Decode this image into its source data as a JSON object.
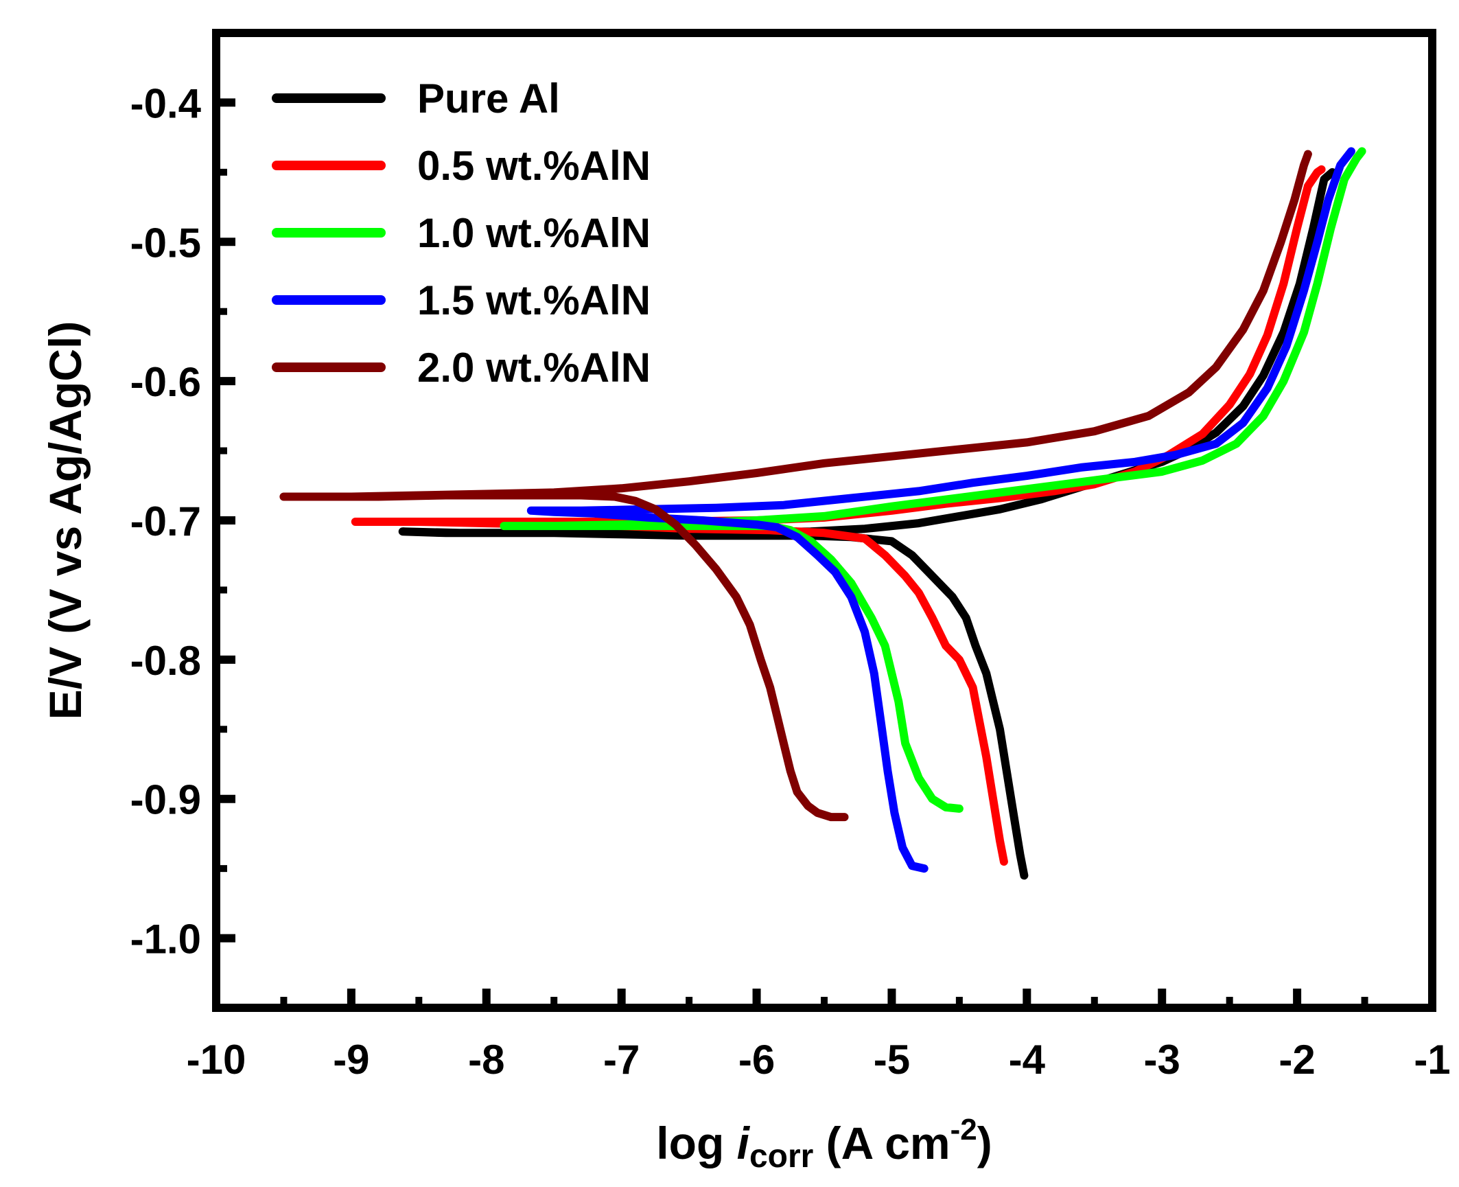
{
  "chart_data": {
    "type": "line",
    "title": "",
    "xlabel_prefix": "log ",
    "xlabel_italic": "i",
    "xlabel_sub": "corr",
    "xlabel_unit": " (A cm",
    "xlabel_sup": "-2",
    "xlabel_close": ")",
    "ylabel": "E/V (V vs Ag/AgCl)",
    "xlim": [
      -10,
      -1
    ],
    "ylim": [
      -1.05,
      -0.35
    ],
    "x_ticks": [
      -10,
      -9,
      -8,
      -7,
      -6,
      -5,
      -4,
      -3,
      -2,
      -1
    ],
    "x_tick_labels": [
      "-10",
      "-9",
      "-8",
      "-7",
      "-6",
      "-5",
      "-4",
      "-3",
      "-2",
      "-1"
    ],
    "y_ticks": [
      -0.4,
      -0.5,
      -0.6,
      -0.7,
      -0.8,
      -0.9,
      -1.0
    ],
    "y_tick_labels": [
      "-0.4",
      "-0.5",
      "-0.6",
      "-0.7",
      "-0.8",
      "-0.9",
      "-1.0"
    ],
    "grid": false,
    "legend_position": "top-left",
    "series": [
      {
        "name": "Pure Al",
        "color": "#000000",
        "points": [
          [
            -4.02,
            -0.955
          ],
          [
            -4.05,
            -0.94
          ],
          [
            -4.1,
            -0.91
          ],
          [
            -4.15,
            -0.88
          ],
          [
            -4.2,
            -0.85
          ],
          [
            -4.25,
            -0.83
          ],
          [
            -4.3,
            -0.81
          ],
          [
            -4.38,
            -0.79
          ],
          [
            -4.45,
            -0.77
          ],
          [
            -4.55,
            -0.755
          ],
          [
            -4.7,
            -0.74
          ],
          [
            -4.85,
            -0.725
          ],
          [
            -5.0,
            -0.715
          ],
          [
            -5.3,
            -0.712
          ],
          [
            -5.6,
            -0.711
          ],
          [
            -6.0,
            -0.711
          ],
          [
            -6.5,
            -0.711
          ],
          [
            -7.0,
            -0.71
          ],
          [
            -7.5,
            -0.709
          ],
          [
            -8.0,
            -0.709
          ],
          [
            -8.3,
            -0.709
          ],
          [
            -8.62,
            -0.708
          ],
          [
            -8.2,
            -0.709
          ],
          [
            -7.2,
            -0.709
          ],
          [
            -6.3,
            -0.709
          ],
          [
            -5.6,
            -0.708
          ],
          [
            -5.2,
            -0.706
          ],
          [
            -4.8,
            -0.702
          ],
          [
            -4.5,
            -0.697
          ],
          [
            -4.2,
            -0.692
          ],
          [
            -3.9,
            -0.685
          ],
          [
            -3.6,
            -0.676
          ],
          [
            -3.3,
            -0.667
          ],
          [
            -3.0,
            -0.658
          ],
          [
            -2.8,
            -0.649
          ],
          [
            -2.6,
            -0.637
          ],
          [
            -2.4,
            -0.618
          ],
          [
            -2.25,
            -0.596
          ],
          [
            -2.1,
            -0.565
          ],
          [
            -1.98,
            -0.53
          ],
          [
            -1.88,
            -0.49
          ],
          [
            -1.8,
            -0.455
          ],
          [
            -1.74,
            -0.45
          ]
        ]
      },
      {
        "name": "0.5 wt.%AlN",
        "color": "#ff0000",
        "points": [
          [
            -4.17,
            -0.945
          ],
          [
            -4.2,
            -0.93
          ],
          [
            -4.25,
            -0.9
          ],
          [
            -4.3,
            -0.87
          ],
          [
            -4.35,
            -0.845
          ],
          [
            -4.4,
            -0.82
          ],
          [
            -4.5,
            -0.8
          ],
          [
            -4.6,
            -0.79
          ],
          [
            -4.7,
            -0.77
          ],
          [
            -4.8,
            -0.752
          ],
          [
            -4.9,
            -0.74
          ],
          [
            -5.05,
            -0.725
          ],
          [
            -5.2,
            -0.713
          ],
          [
            -5.5,
            -0.709
          ],
          [
            -5.9,
            -0.707
          ],
          [
            -6.5,
            -0.706
          ],
          [
            -7.0,
            -0.704
          ],
          [
            -7.5,
            -0.703
          ],
          [
            -8.0,
            -0.702
          ],
          [
            -8.5,
            -0.701
          ],
          [
            -8.97,
            -0.701
          ],
          [
            -8.4,
            -0.701
          ],
          [
            -7.6,
            -0.701
          ],
          [
            -6.8,
            -0.701
          ],
          [
            -6.0,
            -0.7
          ],
          [
            -5.5,
            -0.698
          ],
          [
            -5.0,
            -0.693
          ],
          [
            -4.6,
            -0.688
          ],
          [
            -4.2,
            -0.684
          ],
          [
            -3.8,
            -0.679
          ],
          [
            -3.5,
            -0.674
          ],
          [
            -3.2,
            -0.665
          ],
          [
            -2.95,
            -0.653
          ],
          [
            -2.7,
            -0.638
          ],
          [
            -2.5,
            -0.617
          ],
          [
            -2.35,
            -0.595
          ],
          [
            -2.22,
            -0.567
          ],
          [
            -2.1,
            -0.53
          ],
          [
            -2.0,
            -0.49
          ],
          [
            -1.92,
            -0.46
          ],
          [
            -1.85,
            -0.45
          ],
          [
            -1.82,
            -0.448
          ]
        ]
      },
      {
        "name": "1.0 wt.%AlN",
        "color": "#00ff00",
        "points": [
          [
            -4.5,
            -0.907
          ],
          [
            -4.6,
            -0.906
          ],
          [
            -4.7,
            -0.9
          ],
          [
            -4.8,
            -0.885
          ],
          [
            -4.9,
            -0.86
          ],
          [
            -4.95,
            -0.83
          ],
          [
            -5.0,
            -0.81
          ],
          [
            -5.05,
            -0.79
          ],
          [
            -5.15,
            -0.77
          ],
          [
            -5.3,
            -0.745
          ],
          [
            -5.45,
            -0.728
          ],
          [
            -5.6,
            -0.715
          ],
          [
            -5.75,
            -0.707
          ],
          [
            -5.9,
            -0.704
          ],
          [
            -6.2,
            -0.704
          ],
          [
            -6.7,
            -0.704
          ],
          [
            -7.2,
            -0.704
          ],
          [
            -7.6,
            -0.704
          ],
          [
            -7.87,
            -0.704
          ],
          [
            -7.5,
            -0.704
          ],
          [
            -7.0,
            -0.703
          ],
          [
            -6.5,
            -0.702
          ],
          [
            -6.0,
            -0.7
          ],
          [
            -5.5,
            -0.697
          ],
          [
            -5.0,
            -0.69
          ],
          [
            -4.6,
            -0.685
          ],
          [
            -4.2,
            -0.68
          ],
          [
            -3.8,
            -0.675
          ],
          [
            -3.4,
            -0.67
          ],
          [
            -3.0,
            -0.665
          ],
          [
            -2.7,
            -0.657
          ],
          [
            -2.45,
            -0.645
          ],
          [
            -2.25,
            -0.625
          ],
          [
            -2.1,
            -0.6
          ],
          [
            -1.95,
            -0.565
          ],
          [
            -1.85,
            -0.53
          ],
          [
            -1.75,
            -0.49
          ],
          [
            -1.65,
            -0.455
          ],
          [
            -1.56,
            -0.44
          ],
          [
            -1.52,
            -0.435
          ]
        ]
      },
      {
        "name": "1.5 wt.%AlN",
        "color": "#0000ff",
        "points": [
          [
            -4.76,
            -0.95
          ],
          [
            -4.85,
            -0.948
          ],
          [
            -4.92,
            -0.935
          ],
          [
            -4.98,
            -0.91
          ],
          [
            -5.03,
            -0.88
          ],
          [
            -5.08,
            -0.845
          ],
          [
            -5.13,
            -0.81
          ],
          [
            -5.2,
            -0.78
          ],
          [
            -5.3,
            -0.755
          ],
          [
            -5.42,
            -0.737
          ],
          [
            -5.55,
            -0.725
          ],
          [
            -5.7,
            -0.712
          ],
          [
            -5.85,
            -0.705
          ],
          [
            -6.0,
            -0.703
          ],
          [
            -6.4,
            -0.7
          ],
          [
            -6.8,
            -0.698
          ],
          [
            -7.2,
            -0.695
          ],
          [
            -7.5,
            -0.694
          ],
          [
            -7.67,
            -0.693
          ],
          [
            -7.3,
            -0.693
          ],
          [
            -6.8,
            -0.692
          ],
          [
            -6.3,
            -0.691
          ],
          [
            -5.8,
            -0.689
          ],
          [
            -5.3,
            -0.684
          ],
          [
            -4.8,
            -0.679
          ],
          [
            -4.4,
            -0.673
          ],
          [
            -4.0,
            -0.668
          ],
          [
            -3.6,
            -0.662
          ],
          [
            -3.2,
            -0.658
          ],
          [
            -2.9,
            -0.653
          ],
          [
            -2.6,
            -0.645
          ],
          [
            -2.4,
            -0.63
          ],
          [
            -2.22,
            -0.605
          ],
          [
            -2.08,
            -0.575
          ],
          [
            -1.95,
            -0.535
          ],
          [
            -1.85,
            -0.5
          ],
          [
            -1.77,
            -0.47
          ],
          [
            -1.68,
            -0.445
          ],
          [
            -1.6,
            -0.435
          ]
        ]
      },
      {
        "name": "2.0 wt.%AlN",
        "color": "#800000",
        "points": [
          [
            -5.35,
            -0.913
          ],
          [
            -5.45,
            -0.913
          ],
          [
            -5.55,
            -0.91
          ],
          [
            -5.62,
            -0.905
          ],
          [
            -5.7,
            -0.895
          ],
          [
            -5.75,
            -0.88
          ],
          [
            -5.8,
            -0.86
          ],
          [
            -5.85,
            -0.84
          ],
          [
            -5.9,
            -0.82
          ],
          [
            -5.97,
            -0.8
          ],
          [
            -6.05,
            -0.775
          ],
          [
            -6.15,
            -0.755
          ],
          [
            -6.3,
            -0.735
          ],
          [
            -6.45,
            -0.718
          ],
          [
            -6.6,
            -0.703
          ],
          [
            -6.75,
            -0.692
          ],
          [
            -6.9,
            -0.686
          ],
          [
            -7.05,
            -0.683
          ],
          [
            -7.3,
            -0.682
          ],
          [
            -7.8,
            -0.682
          ],
          [
            -8.3,
            -0.682
          ],
          [
            -8.8,
            -0.683
          ],
          [
            -9.2,
            -0.683
          ],
          [
            -9.5,
            -0.683
          ],
          [
            -9.0,
            -0.683
          ],
          [
            -8.5,
            -0.682
          ],
          [
            -8.0,
            -0.681
          ],
          [
            -7.5,
            -0.68
          ],
          [
            -7.0,
            -0.677
          ],
          [
            -6.5,
            -0.672
          ],
          [
            -6.0,
            -0.666
          ],
          [
            -5.5,
            -0.659
          ],
          [
            -5.0,
            -0.654
          ],
          [
            -4.5,
            -0.649
          ],
          [
            -4.0,
            -0.644
          ],
          [
            -3.5,
            -0.636
          ],
          [
            -3.1,
            -0.625
          ],
          [
            -2.8,
            -0.608
          ],
          [
            -2.6,
            -0.59
          ],
          [
            -2.4,
            -0.563
          ],
          [
            -2.25,
            -0.535
          ],
          [
            -2.12,
            -0.5
          ],
          [
            -2.02,
            -0.47
          ],
          [
            -1.95,
            -0.445
          ],
          [
            -1.92,
            -0.437
          ]
        ]
      }
    ]
  }
}
